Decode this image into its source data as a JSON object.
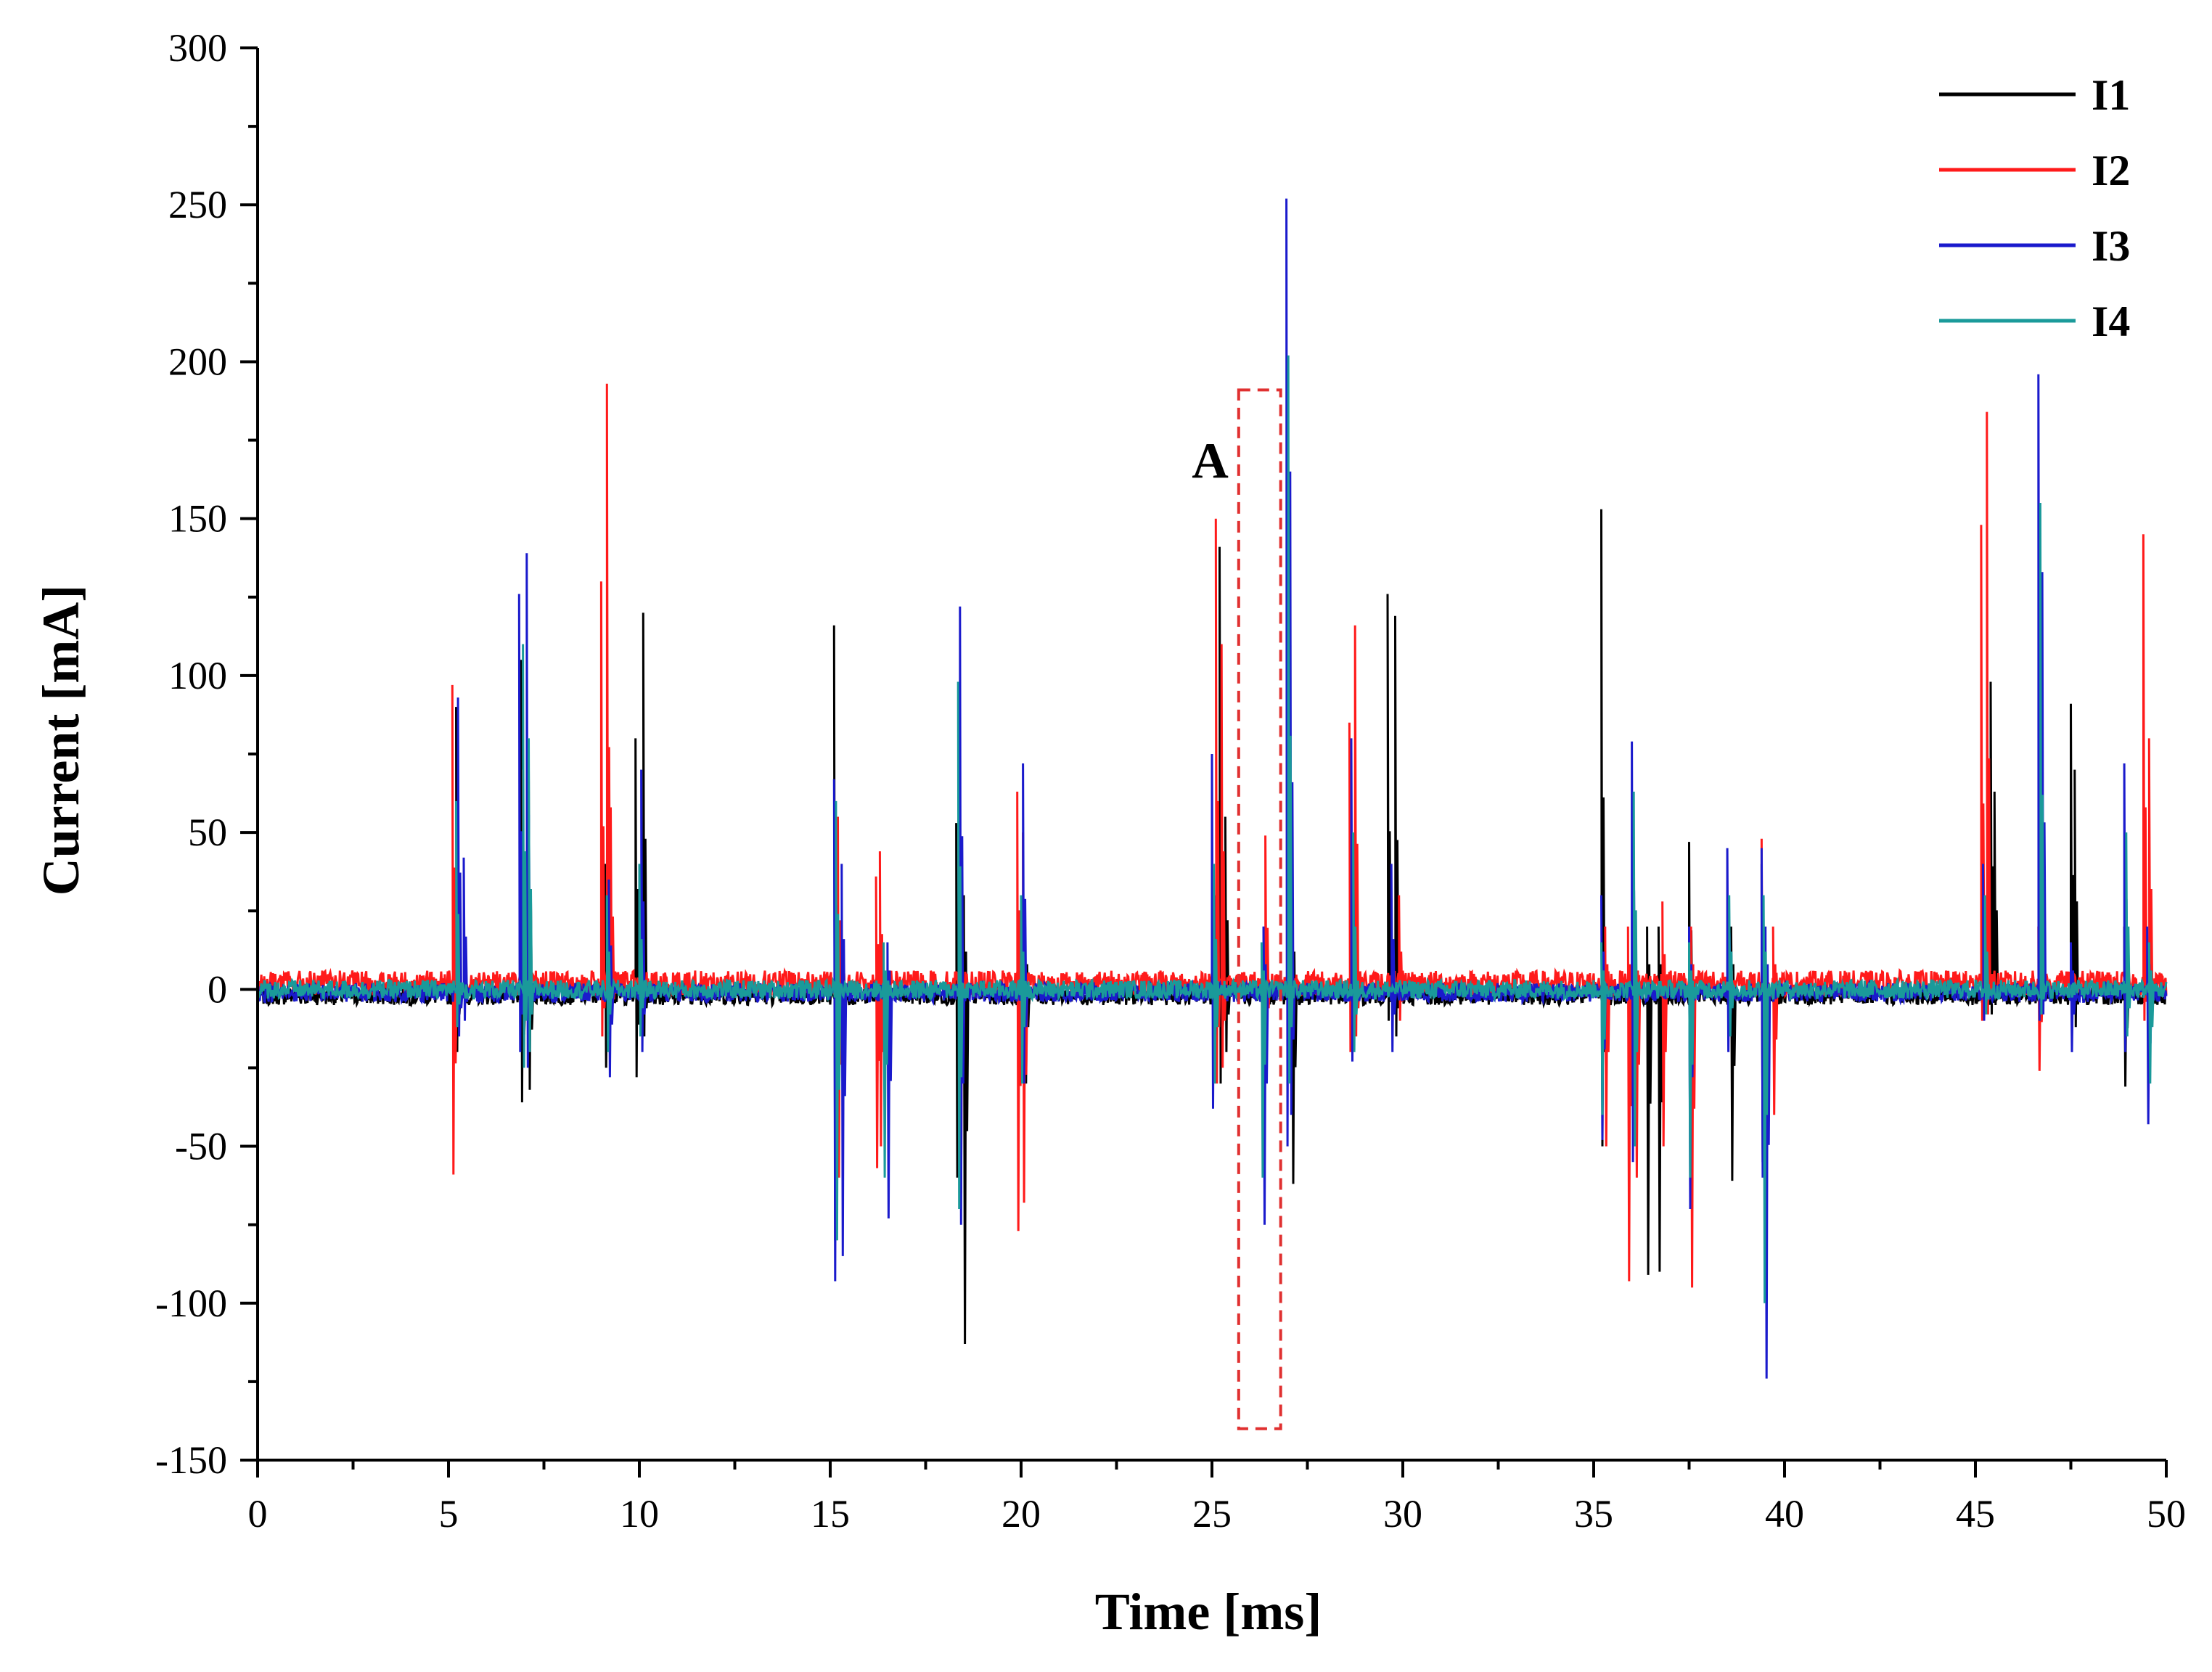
{
  "chart_data": {
    "type": "line",
    "title": "",
    "xlabel": "Time [ms]",
    "ylabel": "Current [mA]",
    "xlim": [
      0,
      50
    ],
    "ylim": [
      -150,
      300
    ],
    "x_ticks": [
      0,
      5,
      10,
      15,
      20,
      25,
      30,
      35,
      40,
      45,
      50
    ],
    "y_ticks": [
      -150,
      -100,
      -50,
      0,
      50,
      100,
      150,
      200,
      250,
      300
    ],
    "grid": false,
    "legend_position": "top-right",
    "baseline_noise": {
      "I1": {
        "center": -2,
        "amplitude": 3
      },
      "I2": {
        "center": 2,
        "amplitude": 4
      },
      "I3": {
        "center": -1,
        "amplitude": 3
      },
      "I4": {
        "center": 0,
        "amplitude": 3
      }
    },
    "series": [
      {
        "name": "I1",
        "color": "#000000",
        "spikes": [
          {
            "x": 5.2,
            "max": 90,
            "min": -20
          },
          {
            "x": 6.9,
            "max": 105,
            "min": -36
          },
          {
            "x": 7.1,
            "max": 70,
            "min": -32
          },
          {
            "x": 9.1,
            "max": 40,
            "min": -25
          },
          {
            "x": 9.9,
            "max": 80,
            "min": -28
          },
          {
            "x": 10.1,
            "max": 120,
            "min": -15
          },
          {
            "x": 15.1,
            "max": 116,
            "min": -80
          },
          {
            "x": 18.3,
            "max": 53,
            "min": -60
          },
          {
            "x": 18.5,
            "max": 30,
            "min": -113
          },
          {
            "x": 20.1,
            "max": 20,
            "min": -30
          },
          {
            "x": 25.2,
            "max": 141,
            "min": -30
          },
          {
            "x": 25.35,
            "max": 55,
            "min": -20
          },
          {
            "x": 27.1,
            "max": 30,
            "min": -62
          },
          {
            "x": 29.6,
            "max": 126,
            "min": -10
          },
          {
            "x": 29.8,
            "max": 119,
            "min": -15
          },
          {
            "x": 35.2,
            "max": 153,
            "min": -50
          },
          {
            "x": 36.4,
            "max": 20,
            "min": -91
          },
          {
            "x": 36.7,
            "max": 20,
            "min": -90
          },
          {
            "x": 37.5,
            "max": 47,
            "min": -40
          },
          {
            "x": 38.6,
            "max": 20,
            "min": -61
          },
          {
            "x": 39.4,
            "max": 40,
            "min": -55
          },
          {
            "x": 45.4,
            "max": 98,
            "min": -8
          },
          {
            "x": 45.5,
            "max": 63,
            "min": -5
          },
          {
            "x": 47.5,
            "max": 91,
            "min": -15
          },
          {
            "x": 47.6,
            "max": 70,
            "min": -12
          },
          {
            "x": 48.9,
            "max": 20,
            "min": -31
          }
        ]
      },
      {
        "name": "I2",
        "color": "#ff1a1a",
        "spikes": [
          {
            "x": 5.1,
            "max": 97,
            "min": -59
          },
          {
            "x": 6.95,
            "max": 70,
            "min": -20
          },
          {
            "x": 9.0,
            "max": 130,
            "min": -15
          },
          {
            "x": 9.15,
            "max": 193,
            "min": -10
          },
          {
            "x": 9.25,
            "max": 58,
            "min": -8
          },
          {
            "x": 15.2,
            "max": 55,
            "min": -60
          },
          {
            "x": 16.2,
            "max": 36,
            "min": -57
          },
          {
            "x": 16.3,
            "max": 44,
            "min": -50
          },
          {
            "x": 18.4,
            "max": 40,
            "min": -65
          },
          {
            "x": 19.9,
            "max": 63,
            "min": -77
          },
          {
            "x": 20.05,
            "max": 50,
            "min": -68
          },
          {
            "x": 25.1,
            "max": 150,
            "min": -30
          },
          {
            "x": 25.25,
            "max": 110,
            "min": -25
          },
          {
            "x": 26.4,
            "max": 49,
            "min": -15
          },
          {
            "x": 28.6,
            "max": 85,
            "min": -20
          },
          {
            "x": 28.75,
            "max": 116,
            "min": -15
          },
          {
            "x": 29.9,
            "max": 30,
            "min": -10
          },
          {
            "x": 35.3,
            "max": 20,
            "min": -50
          },
          {
            "x": 35.9,
            "max": 20,
            "min": -93
          },
          {
            "x": 36.1,
            "max": 15,
            "min": -60
          },
          {
            "x": 36.8,
            "max": 28,
            "min": -50
          },
          {
            "x": 37.55,
            "max": 20,
            "min": -95
          },
          {
            "x": 39.4,
            "max": 48,
            "min": -40
          },
          {
            "x": 39.7,
            "max": 20,
            "min": -40
          },
          {
            "x": 45.15,
            "max": 148,
            "min": -10
          },
          {
            "x": 45.3,
            "max": 184,
            "min": -8
          },
          {
            "x": 46.65,
            "max": 20,
            "min": -26
          },
          {
            "x": 49.4,
            "max": 145,
            "min": -10
          },
          {
            "x": 49.55,
            "max": 80,
            "min": -5
          }
        ]
      },
      {
        "name": "I3",
        "color": "#1a1acc",
        "spikes": [
          {
            "x": 5.25,
            "max": 93,
            "min": -15
          },
          {
            "x": 5.4,
            "max": 42,
            "min": -10
          },
          {
            "x": 6.85,
            "max": 126,
            "min": -20
          },
          {
            "x": 7.05,
            "max": 139,
            "min": -25
          },
          {
            "x": 9.2,
            "max": 35,
            "min": -28
          },
          {
            "x": 10.05,
            "max": 70,
            "min": -20
          },
          {
            "x": 15.1,
            "max": 67,
            "min": -93
          },
          {
            "x": 15.3,
            "max": 40,
            "min": -85
          },
          {
            "x": 16.5,
            "max": 15,
            "min": -73
          },
          {
            "x": 18.4,
            "max": 122,
            "min": -75
          },
          {
            "x": 20.05,
            "max": 72,
            "min": -30
          },
          {
            "x": 25.0,
            "max": 75,
            "min": -38
          },
          {
            "x": 26.35,
            "max": 20,
            "min": -75
          },
          {
            "x": 26.95,
            "max": 252,
            "min": -50
          },
          {
            "x": 27.05,
            "max": 165,
            "min": -40
          },
          {
            "x": 28.65,
            "max": 80,
            "min": -23
          },
          {
            "x": 29.7,
            "max": 40,
            "min": -20
          },
          {
            "x": 35.2,
            "max": 30,
            "min": -48
          },
          {
            "x": 36.0,
            "max": 79,
            "min": -55
          },
          {
            "x": 37.5,
            "max": 20,
            "min": -70
          },
          {
            "x": 38.5,
            "max": 45,
            "min": -20
          },
          {
            "x": 39.4,
            "max": 45,
            "min": -60
          },
          {
            "x": 39.5,
            "max": 20,
            "min": -124
          },
          {
            "x": 45.2,
            "max": 40,
            "min": -10
          },
          {
            "x": 46.65,
            "max": 196,
            "min": -10
          },
          {
            "x": 46.75,
            "max": 133,
            "min": -8
          },
          {
            "x": 47.5,
            "max": 15,
            "min": -20
          },
          {
            "x": 48.9,
            "max": 72,
            "min": -20
          },
          {
            "x": 49.5,
            "max": 20,
            "min": -43
          }
        ]
      },
      {
        "name": "I4",
        "color": "#1a9a9a",
        "spikes": [
          {
            "x": 5.2,
            "max": 60,
            "min": -12
          },
          {
            "x": 6.95,
            "max": 110,
            "min": -25
          },
          {
            "x": 7.1,
            "max": 80,
            "min": -20
          },
          {
            "x": 9.15,
            "max": 30,
            "min": -20
          },
          {
            "x": 10.0,
            "max": 40,
            "min": -15
          },
          {
            "x": 15.15,
            "max": 60,
            "min": -80
          },
          {
            "x": 16.4,
            "max": 15,
            "min": -60
          },
          {
            "x": 18.35,
            "max": 98,
            "min": -70
          },
          {
            "x": 20.0,
            "max": 30,
            "min": -30
          },
          {
            "x": 25.05,
            "max": 40,
            "min": -30
          },
          {
            "x": 26.3,
            "max": 15,
            "min": -60
          },
          {
            "x": 27.0,
            "max": 202,
            "min": -30
          },
          {
            "x": 28.7,
            "max": 50,
            "min": -20
          },
          {
            "x": 35.2,
            "max": 15,
            "min": -40
          },
          {
            "x": 36.05,
            "max": 63,
            "min": -50
          },
          {
            "x": 37.5,
            "max": 15,
            "min": -60
          },
          {
            "x": 38.55,
            "max": 30,
            "min": -15
          },
          {
            "x": 39.45,
            "max": 30,
            "min": -100
          },
          {
            "x": 45.25,
            "max": 30,
            "min": -8
          },
          {
            "x": 46.7,
            "max": 155,
            "min": -8
          },
          {
            "x": 48.95,
            "max": 50,
            "min": -15
          },
          {
            "x": 49.55,
            "max": 15,
            "min": -30
          }
        ]
      }
    ],
    "annotations": [
      {
        "label": "A",
        "box_x": [
          25.7,
          26.8
        ],
        "box_y": [
          -140,
          191
        ],
        "color": "#e03030",
        "style": "dashed"
      }
    ]
  }
}
